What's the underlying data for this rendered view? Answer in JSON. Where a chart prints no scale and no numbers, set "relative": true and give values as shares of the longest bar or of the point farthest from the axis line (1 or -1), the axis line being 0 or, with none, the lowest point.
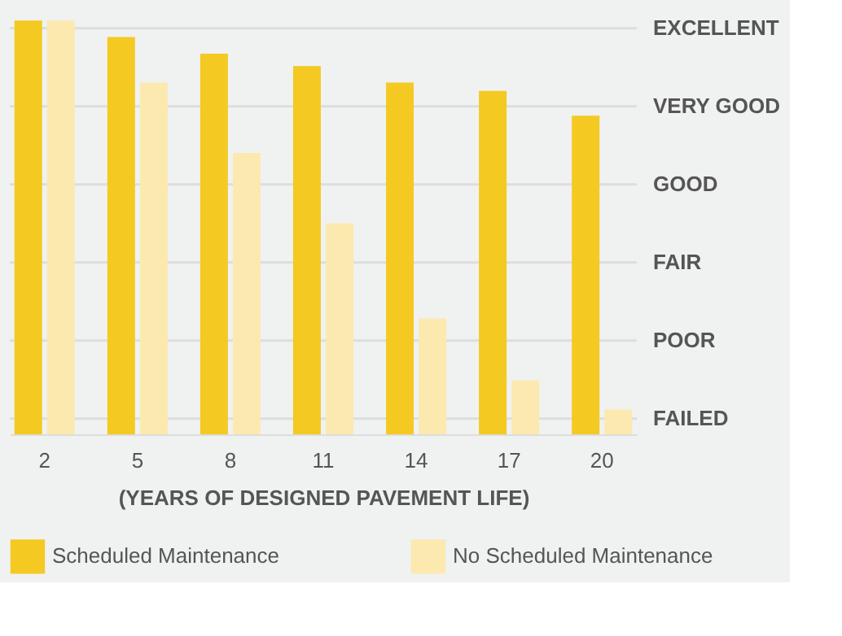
{
  "chart_data": {
    "type": "bar",
    "relative": true,
    "xlabel": "(YEARS OF DESIGNED PAVEMENT LIFE)",
    "categories": [
      "2",
      "5",
      "8",
      "11",
      "14",
      "17",
      "20"
    ],
    "series": [
      {
        "name": "Scheduled Maintenance",
        "color": "#f4c922",
        "values": [
          1,
          0.96,
          0.92,
          0.89,
          0.85,
          0.83,
          0.77
        ]
      },
      {
        "name": "No Scheduled Maintenance",
        "color": "#fce9b0",
        "values": [
          1,
          0.85,
          0.68,
          0.51,
          0.28,
          0.13,
          0.06
        ]
      }
    ],
    "annotations": [
      "FAILED",
      "POOR",
      "FAIR",
      "GOOD",
      "VERY GOOD",
      "EXCELLENT"
    ],
    "legend": "bottom"
  }
}
